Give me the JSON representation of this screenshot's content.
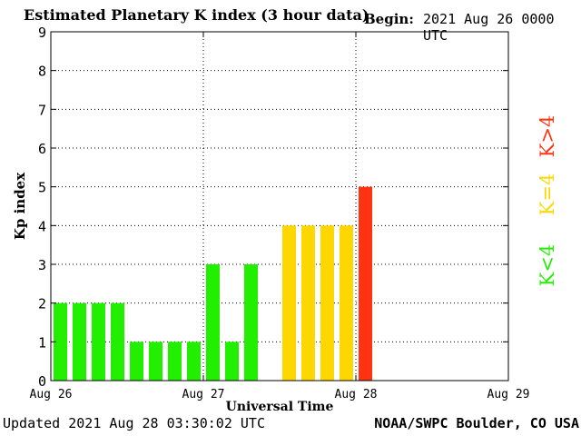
{
  "header": {
    "title": "Estimated Planetary K index (3 hour data)",
    "begin_label": "Begin:",
    "begin_value": "2021 Aug 26 0000 UTC"
  },
  "footer": {
    "updated": "Updated 2021 Aug 28 03:30:02 UTC",
    "credit": "NOAA/SWPC Boulder, CO USA"
  },
  "legend": {
    "high": "K>4",
    "equal": "K=4",
    "low": "K<4"
  },
  "colors": {
    "low": "#22ee00",
    "equal": "#ffd700",
    "high": "#ff3311"
  },
  "chart_data": {
    "type": "bar",
    "title": "Estimated Planetary K index (3 hour data)",
    "xlabel": "Universal Time",
    "ylabel": "Kp index",
    "ylim": [
      0,
      9
    ],
    "yticks": [
      0,
      1,
      2,
      3,
      4,
      5,
      6,
      7,
      8,
      9
    ],
    "xlim_hours": [
      0,
      72
    ],
    "xticks": [
      {
        "hour": 0,
        "label": "Aug 26"
      },
      {
        "hour": 24,
        "label": "Aug 27"
      },
      {
        "hour": 48,
        "label": "Aug 28"
      },
      {
        "hour": 72,
        "label": "Aug 29"
      }
    ],
    "bar_interval_hours": 3,
    "values": [
      2,
      2,
      2,
      2,
      1,
      1,
      1,
      1,
      3,
      1,
      3,
      null,
      4,
      4,
      4,
      4,
      5
    ],
    "grid": true
  }
}
